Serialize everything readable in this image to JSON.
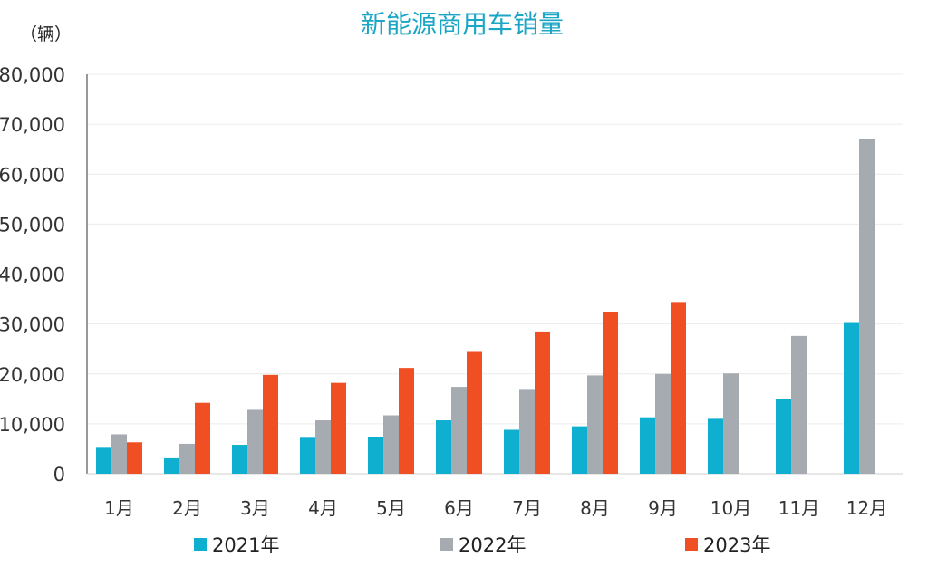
{
  "chart_data": {
    "type": "bar",
    "title": "新能源商用车销量",
    "unit_label": "（辆）",
    "xlabel": "",
    "ylabel": "",
    "ylim": [
      0,
      80000
    ],
    "yticks": [
      0,
      10000,
      20000,
      30000,
      40000,
      50000,
      60000,
      70000,
      80000
    ],
    "ytick_labels": [
      "0",
      "10,000",
      "20,000",
      "30,000",
      "40,000",
      "50,000",
      "60,000",
      "70,000",
      "80,000"
    ],
    "grid": true,
    "legend_position": "bottom",
    "categories": [
      "1月",
      "2月",
      "3月",
      "4月",
      "5月",
      "6月",
      "7月",
      "8月",
      "9月",
      "10月",
      "11月",
      "12月"
    ],
    "series": [
      {
        "name": "2021年",
        "color": "#0fb0cf",
        "values": [
          5200,
          3100,
          5800,
          7200,
          7300,
          10700,
          8800,
          9500,
          11300,
          11000,
          15000,
          30200
        ]
      },
      {
        "name": "2022年",
        "color": "#a5abb1",
        "values": [
          7900,
          6000,
          12800,
          10700,
          11700,
          17400,
          16800,
          19700,
          20000,
          20100,
          27600,
          67000
        ]
      },
      {
        "name": "2023年",
        "color": "#f04e23",
        "values": [
          6300,
          14200,
          19800,
          18200,
          21200,
          24400,
          28500,
          32300,
          34400,
          null,
          null,
          null
        ]
      }
    ]
  }
}
